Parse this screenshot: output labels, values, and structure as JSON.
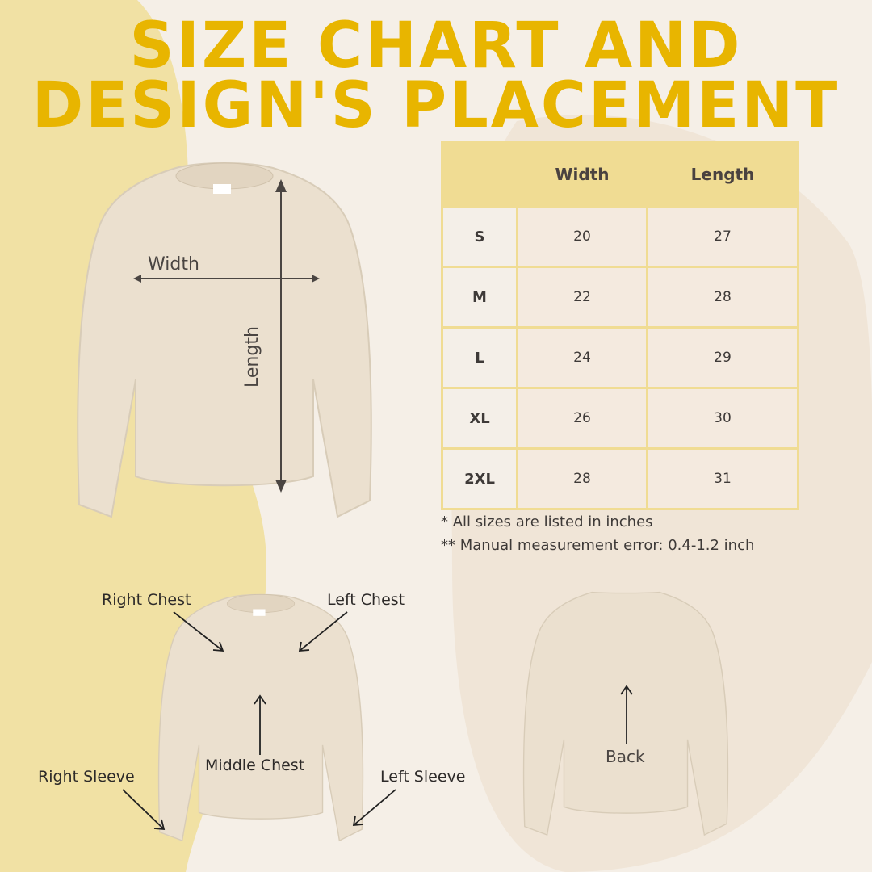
{
  "title": {
    "line1": "SIZE CHART AND",
    "line2": "DESIGN'S PLACEMENT"
  },
  "colors": {
    "title": "#e8b500",
    "table_header": "#f0dc93",
    "background": "#f5efe7",
    "blob": "#f1e1a4",
    "shirt": "#ebe0cf"
  },
  "table": {
    "headers": [
      "",
      "Width",
      "Length"
    ],
    "rows": [
      {
        "size": "S",
        "width": "20",
        "length": "27"
      },
      {
        "size": "M",
        "width": "22",
        "length": "28"
      },
      {
        "size": "L",
        "width": "24",
        "length": "29"
      },
      {
        "size": "XL",
        "width": "26",
        "length": "30"
      },
      {
        "size": "2XL",
        "width": "28",
        "length": "31"
      }
    ]
  },
  "notes": [
    "* All sizes are listed in inches",
    "** Manual measurement error: 0.4-1.2 inch"
  ],
  "measure": {
    "width": "Width",
    "length": "Length"
  },
  "placement": {
    "right_chest": "Right Chest",
    "left_chest": "Left Chest",
    "middle_chest": "Middle Chest",
    "right_sleeve": "Right Sleeve",
    "left_sleeve": "Left Sleeve",
    "back": "Back"
  }
}
